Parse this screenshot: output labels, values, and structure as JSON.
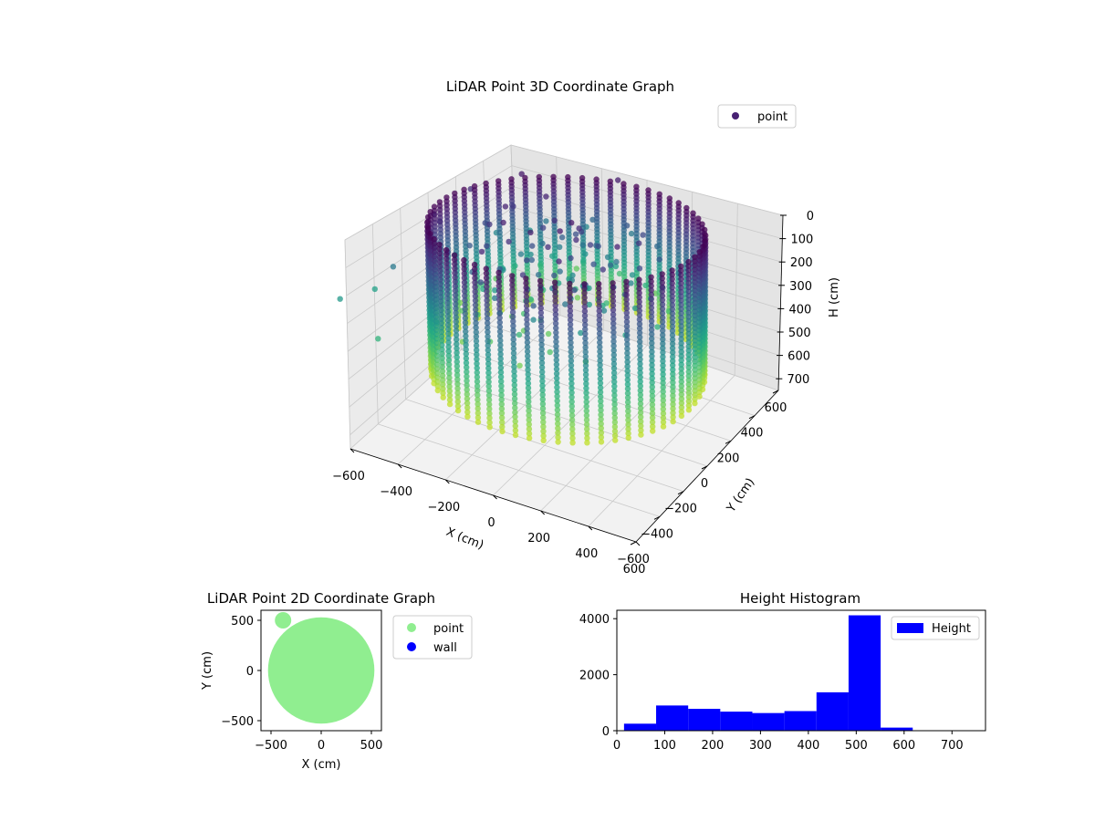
{
  "colors": {
    "viridis_dark": "#440154",
    "viridis_mid": "#21918c",
    "viridis_light": "#7ad151",
    "point_2d": "#90ee90",
    "wall_2d": "#0000ff",
    "histogram_bar": "#0000ff"
  },
  "chart_data": [
    {
      "type": "scatter",
      "projection": "3d",
      "title": "LiDAR Point 3D Coordinate Graph",
      "xlabel": "X (cm)",
      "ylabel": "Y (cm)",
      "zlabel": "H (cm)",
      "xlim": [
        -600,
        600
      ],
      "ylim": [
        -600,
        600
      ],
      "zlim": [
        0,
        750
      ],
      "z_inverted": true,
      "xticks": [
        "−600",
        "−400",
        "−200",
        "0",
        "200",
        "400",
        "600"
      ],
      "yticks": [
        "−600",
        "−400",
        "−200",
        "0",
        "200",
        "400",
        "600"
      ],
      "zticks": [
        "0",
        "100",
        "200",
        "300",
        "400",
        "500",
        "600",
        "700"
      ],
      "colormap": "viridis",
      "grid": true,
      "legend": {
        "entries": [
          "point"
        ],
        "placement": "top-right"
      },
      "series": [
        {
          "name": "point",
          "shape": "cylindrical wall of vertical point columns",
          "radius_cm": 520,
          "height_range_cm": [
            0,
            560
          ],
          "column_count": 60
        }
      ]
    },
    {
      "type": "scatter",
      "title": "LiDAR Point 2D Coordinate Graph",
      "xlabel": "X (cm)",
      "ylabel": "Y (cm)",
      "xlim": [
        -600,
        600
      ],
      "ylim": [
        -600,
        600
      ],
      "xticks": [
        "−500",
        "0",
        "500"
      ],
      "yticks": [
        "−500",
        "0",
        "500"
      ],
      "legend": {
        "entries": [
          "point",
          "wall"
        ],
        "placement": "outside-right"
      },
      "series": [
        {
          "name": "point",
          "shape": "filled disc",
          "center": [
            0,
            0
          ],
          "radius_cm": 530,
          "color": "#90ee90"
        },
        {
          "name": "wall",
          "values": [],
          "color": "#0000ff"
        }
      ]
    },
    {
      "type": "bar",
      "subtype": "histogram",
      "title": "Height Histogram",
      "xlabel": "",
      "ylabel": "",
      "xlim": [
        0,
        770
      ],
      "ylim": [
        0,
        4300
      ],
      "xticks": [
        "0",
        "100",
        "200",
        "300",
        "400",
        "500",
        "600",
        "700"
      ],
      "yticks": [
        "0",
        "2000",
        "4000"
      ],
      "legend": {
        "entries": [
          "Height"
        ],
        "placement": "top-right"
      },
      "series": [
        {
          "name": "Height",
          "bin_edges": [
            15,
            82,
            149,
            216,
            283,
            350,
            417,
            484,
            551,
            618,
            685,
            752
          ],
          "values": [
            250,
            900,
            780,
            680,
            630,
            700,
            1370,
            4120,
            110,
            0,
            0
          ]
        }
      ]
    }
  ]
}
